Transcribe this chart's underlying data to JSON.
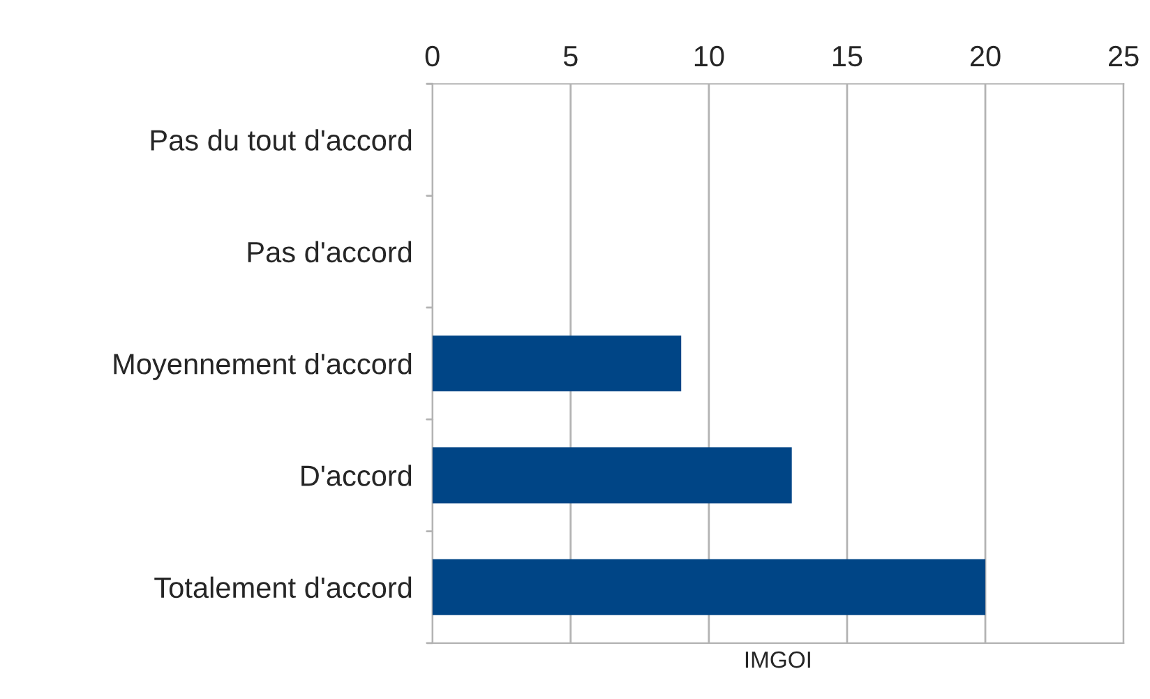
{
  "chart_data": {
    "type": "bar",
    "orientation": "horizontal",
    "categories": [
      "Pas du tout d'accord",
      "Pas d'accord",
      "Moyennement d'accord",
      "D'accord",
      "Totalement d'accord"
    ],
    "values": [
      0,
      0,
      9,
      13,
      20
    ],
    "color": "#004586",
    "xlim": [
      0,
      25
    ],
    "xticks": [
      0,
      5,
      10,
      15,
      20,
      25
    ],
    "grid": "x",
    "xlabel": "IMGOI",
    "legend": false
  }
}
